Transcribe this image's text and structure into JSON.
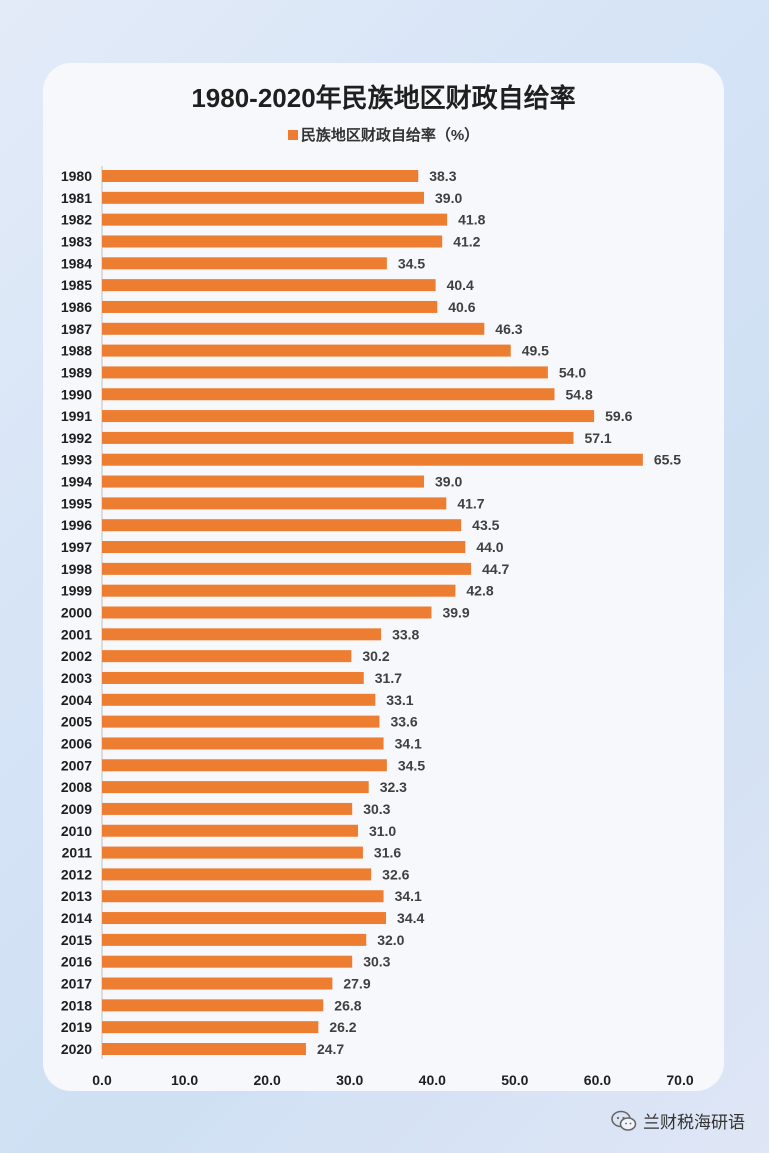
{
  "chart_data": {
    "type": "bar",
    "orientation": "horizontal",
    "title": "1980-2020年民族地区财政自给率",
    "legend": "民族地区财政自给率（%）",
    "color": "#ED7D31",
    "categories": [
      "1980",
      "1981",
      "1982",
      "1983",
      "1984",
      "1985",
      "1986",
      "1987",
      "1988",
      "1989",
      "1990",
      "1991",
      "1992",
      "1993",
      "1994",
      "1995",
      "1996",
      "1997",
      "1998",
      "1999",
      "2000",
      "2001",
      "2002",
      "2003",
      "2004",
      "2005",
      "2006",
      "2007",
      "2008",
      "2009",
      "2010",
      "2011",
      "2012",
      "2013",
      "2014",
      "2015",
      "2016",
      "2017",
      "2018",
      "2019",
      "2020"
    ],
    "values": [
      38.3,
      39.0,
      41.8,
      41.2,
      34.5,
      40.4,
      40.6,
      46.3,
      49.5,
      54.0,
      54.8,
      59.6,
      57.1,
      65.5,
      39.0,
      41.7,
      43.5,
      44.0,
      44.7,
      42.8,
      39.9,
      33.8,
      30.2,
      31.7,
      33.1,
      33.6,
      34.1,
      34.5,
      32.3,
      30.3,
      31.0,
      31.6,
      32.6,
      34.1,
      34.4,
      32.0,
      30.3,
      27.9,
      26.8,
      26.2,
      24.7
    ],
    "xlim": [
      0,
      70
    ],
    "xticks": [
      "0.0",
      "10.0",
      "20.0",
      "30.0",
      "40.0",
      "50.0",
      "60.0",
      "70.0"
    ],
    "grid": false,
    "legend_position": "top"
  },
  "watermark": {
    "text": "兰财税海研语",
    "icon": "wechat-icon"
  }
}
